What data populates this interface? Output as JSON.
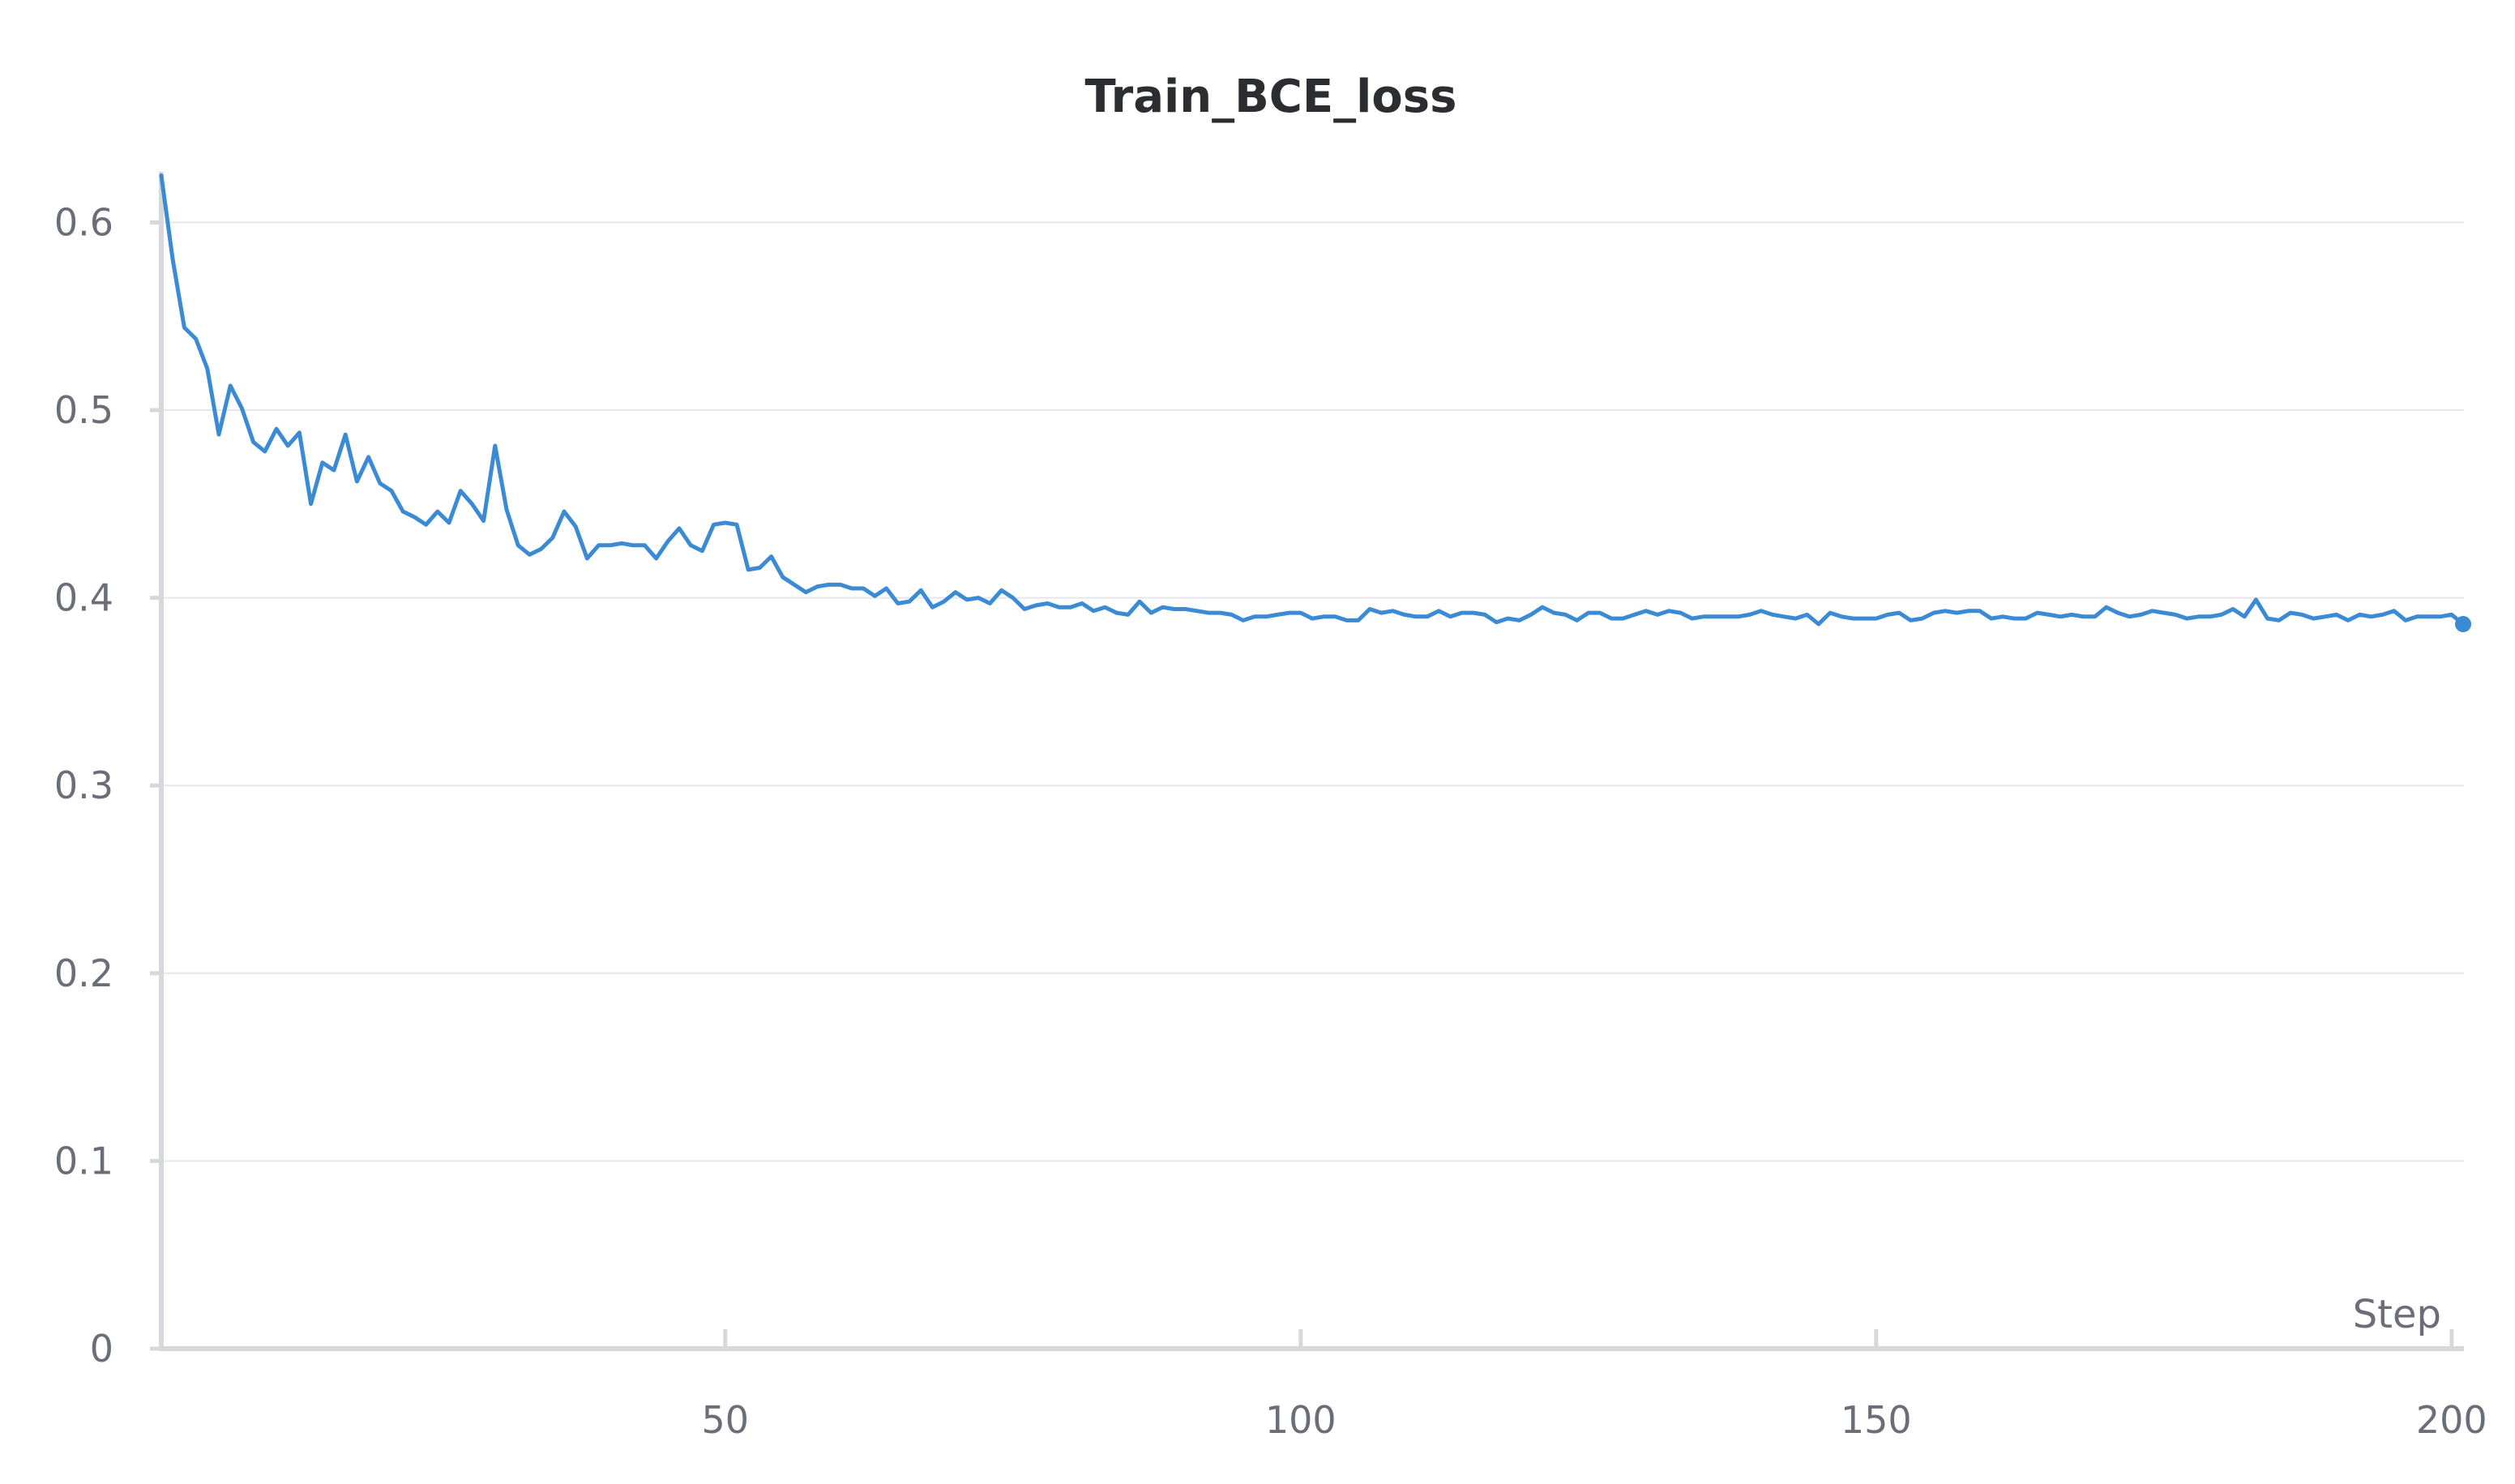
{
  "chart_data": {
    "type": "line",
    "title": "Train_BCE_loss",
    "xlabel": "Step",
    "ylabel": "",
    "xlim": [
      1,
      201
    ],
    "ylim": [
      0,
      0.625
    ],
    "x_ticks": [
      50,
      100,
      150,
      200
    ],
    "y_ticks": [
      0,
      0.1,
      0.2,
      0.3,
      0.4,
      0.5,
      0.6
    ],
    "y_tick_labels": [
      "0",
      "0.1",
      "0.2",
      "0.3",
      "0.4",
      "0.5",
      "0.6"
    ],
    "grid": "horizontal",
    "series": [
      {
        "color": "#3a8ad4",
        "x": [
          1,
          2,
          3,
          4,
          5,
          6,
          7,
          8,
          9,
          10,
          11,
          12,
          13,
          14,
          15,
          16,
          17,
          18,
          19,
          20,
          21,
          22,
          23,
          24,
          25,
          26,
          27,
          28,
          29,
          30,
          31,
          32,
          33,
          34,
          35,
          36,
          37,
          38,
          39,
          40,
          41,
          42,
          43,
          44,
          45,
          46,
          47,
          48,
          49,
          50,
          51,
          52,
          53,
          54,
          55,
          56,
          57,
          58,
          59,
          60,
          61,
          62,
          63,
          64,
          65,
          66,
          67,
          68,
          69,
          70,
          71,
          72,
          73,
          74,
          75,
          76,
          77,
          78,
          79,
          80,
          81,
          82,
          83,
          84,
          85,
          86,
          87,
          88,
          89,
          90,
          91,
          92,
          93,
          94,
          95,
          96,
          97,
          98,
          99,
          100,
          101,
          102,
          103,
          104,
          105,
          106,
          107,
          108,
          109,
          110,
          111,
          112,
          113,
          114,
          115,
          116,
          117,
          118,
          119,
          120,
          121,
          122,
          123,
          124,
          125,
          126,
          127,
          128,
          129,
          130,
          131,
          132,
          133,
          134,
          135,
          136,
          137,
          138,
          139,
          140,
          141,
          142,
          143,
          144,
          145,
          146,
          147,
          148,
          149,
          150,
          151,
          152,
          153,
          154,
          155,
          156,
          157,
          158,
          159,
          160,
          161,
          162,
          163,
          164,
          165,
          166,
          167,
          168,
          169,
          170,
          171,
          172,
          173,
          174,
          175,
          176,
          177,
          178,
          179,
          180,
          181,
          182,
          183,
          184,
          185,
          186,
          187,
          188,
          189,
          190,
          191,
          192,
          193,
          194,
          195,
          196,
          197,
          198,
          199,
          200,
          201
        ],
        "y": [
          0.625,
          0.58,
          0.544,
          0.538,
          0.522,
          0.487,
          0.513,
          0.501,
          0.483,
          0.478,
          0.49,
          0.481,
          0.488,
          0.45,
          0.472,
          0.468,
          0.487,
          0.462,
          0.475,
          0.461,
          0.457,
          0.446,
          0.443,
          0.439,
          0.446,
          0.44,
          0.457,
          0.45,
          0.441,
          0.481,
          0.447,
          0.428,
          0.423,
          0.426,
          0.432,
          0.446,
          0.438,
          0.421,
          0.428,
          0.428,
          0.429,
          0.428,
          0.428,
          0.421,
          0.43,
          0.437,
          0.428,
          0.425,
          0.439,
          0.44,
          0.439,
          0.415,
          0.416,
          0.422,
          0.411,
          0.407,
          0.403,
          0.406,
          0.407,
          0.407,
          0.405,
          0.405,
          0.401,
          0.405,
          0.397,
          0.398,
          0.404,
          0.395,
          0.398,
          0.403,
          0.399,
          0.4,
          0.397,
          0.404,
          0.4,
          0.394,
          0.396,
          0.397,
          0.395,
          0.395,
          0.397,
          0.393,
          0.395,
          0.392,
          0.391,
          0.398,
          0.392,
          0.395,
          0.394,
          0.394,
          0.393,
          0.392,
          0.392,
          0.391,
          0.388,
          0.39,
          0.39,
          0.391,
          0.392,
          0.392,
          0.389,
          0.39,
          0.39,
          0.388,
          0.388,
          0.394,
          0.392,
          0.393,
          0.391,
          0.39,
          0.39,
          0.393,
          0.39,
          0.392,
          0.392,
          0.391,
          0.387,
          0.389,
          0.388,
          0.391,
          0.395,
          0.392,
          0.391,
          0.388,
          0.392,
          0.392,
          0.389,
          0.389,
          0.391,
          0.393,
          0.391,
          0.393,
          0.392,
          0.389,
          0.39,
          0.39,
          0.39,
          0.39,
          0.391,
          0.393,
          0.391,
          0.39,
          0.389,
          0.391,
          0.386,
          0.392,
          0.39,
          0.389,
          0.389,
          0.389,
          0.391,
          0.392,
          0.388,
          0.389,
          0.392,
          0.393,
          0.392,
          0.393,
          0.393,
          0.389,
          0.39,
          0.389,
          0.389,
          0.392,
          0.391,
          0.39,
          0.391,
          0.39,
          0.39,
          0.395,
          0.392,
          0.39,
          0.391,
          0.393,
          0.392,
          0.391,
          0.389,
          0.39,
          0.39,
          0.391,
          0.394,
          0.39,
          0.399,
          0.389,
          0.388,
          0.392,
          0.391,
          0.389,
          0.39,
          0.391,
          0.388,
          0.391,
          0.39,
          0.391,
          0.393,
          0.388,
          0.39,
          0.39,
          0.39,
          0.391,
          0.386
        ]
      }
    ]
  }
}
